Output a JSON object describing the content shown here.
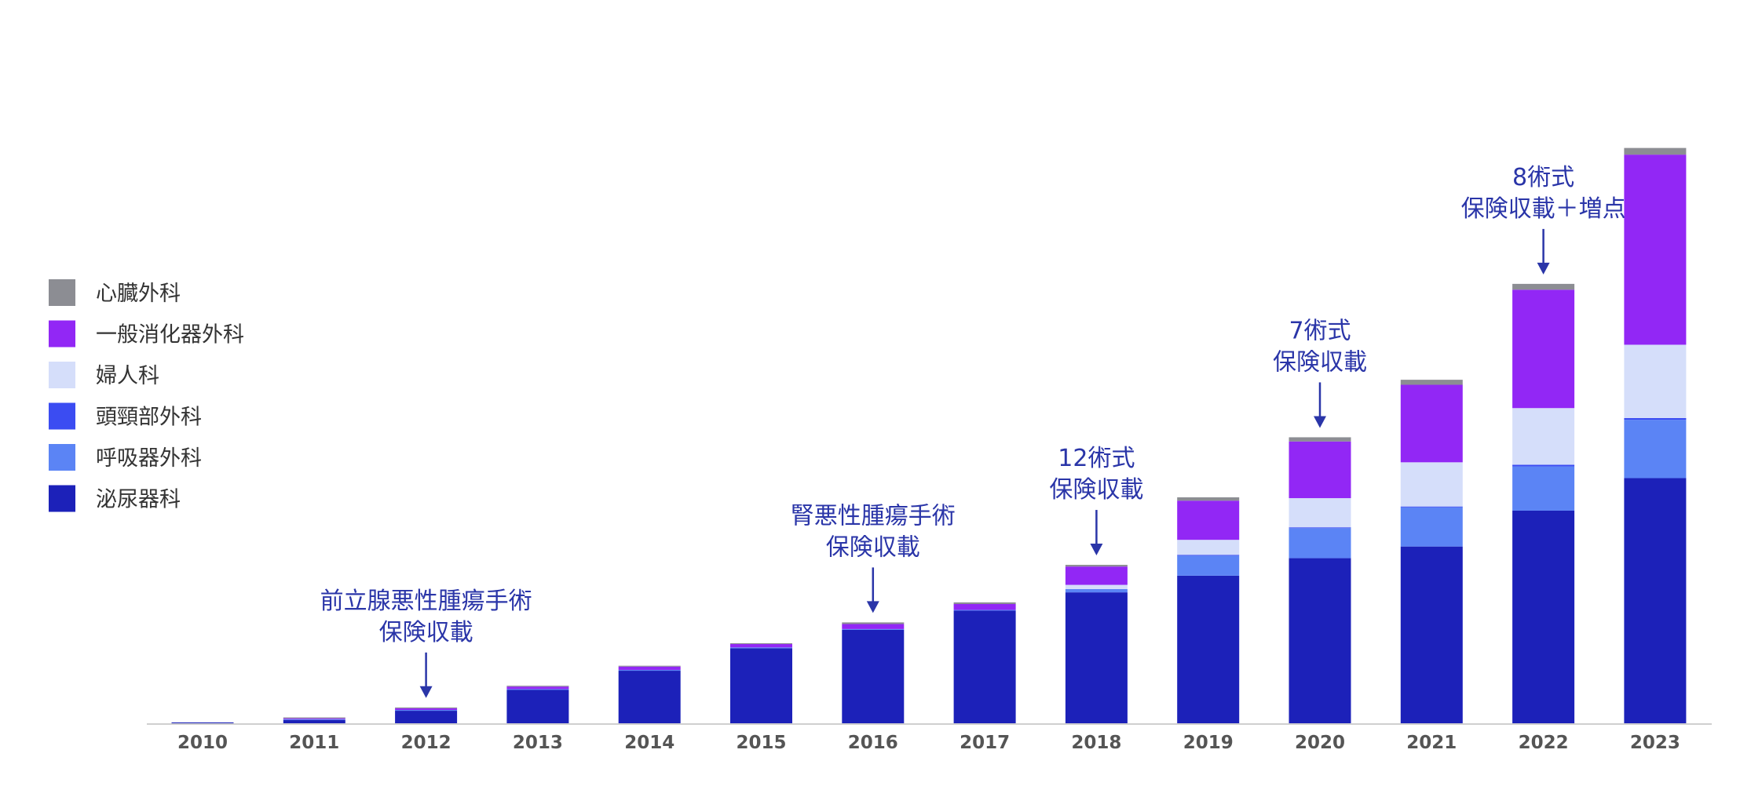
{
  "chart_data": {
    "type": "bar",
    "stacked": true,
    "categories": [
      "2010",
      "2011",
      "2012",
      "2013",
      "2014",
      "2015",
      "2016",
      "2017",
      "2018",
      "2019",
      "2020",
      "2021",
      "2022",
      "2023"
    ],
    "series": [
      {
        "name": "泌尿器科",
        "color": "#1c21b9",
        "values": [
          1,
          4,
          15,
          40,
          63,
          90,
          112,
          135,
          157,
          177,
          198,
          212,
          255,
          294
        ]
      },
      {
        "name": "呼吸器外科",
        "color": "#5b84f5",
        "values": [
          0,
          1,
          1,
          1,
          1,
          1,
          1,
          1,
          4,
          24,
          36,
          47,
          53,
          70
        ]
      },
      {
        "name": "頭頸部外科",
        "color": "#3b4cf2",
        "values": [
          0,
          0,
          0,
          0,
          0,
          0,
          0,
          0,
          0,
          1,
          1,
          1,
          2,
          2
        ]
      },
      {
        "name": "婦人科",
        "color": "#d5defa",
        "values": [
          0,
          0,
          0,
          0,
          0,
          0,
          0,
          0,
          5,
          18,
          35,
          53,
          68,
          88
        ]
      },
      {
        "name": "一般消化器外科",
        "color": "#9227f5",
        "values": [
          0,
          1,
          2,
          3,
          4,
          4,
          6,
          7,
          22,
          47,
          68,
          93,
          142,
          228
        ]
      },
      {
        "name": "心臓外科",
        "color": "#8c8d93",
        "values": [
          0,
          1,
          1,
          1,
          1,
          1,
          2,
          2,
          2,
          4,
          5,
          6,
          7,
          8
        ]
      }
    ],
    "legend_order": [
      "心臓外科",
      "一般消化器外科",
      "婦人科",
      "頭頸部外科",
      "呼吸器外科",
      "泌尿器科"
    ],
    "legend_position": "left",
    "ylim": [
      0,
      700
    ],
    "y_axis_visible": false,
    "grid": false,
    "annotations": [
      {
        "category": "2012",
        "lines": [
          "前立腺悪性腫瘍手術",
          "保険収載"
        ]
      },
      {
        "category": "2016",
        "lines": [
          "腎悪性腫瘍手術",
          "保険収載"
        ]
      },
      {
        "category": "2018",
        "lines": [
          "12術式",
          "保険収載"
        ]
      },
      {
        "category": "2020",
        "lines": [
          "7術式",
          "保険収載"
        ]
      },
      {
        "category": "2022",
        "lines": [
          "8術式",
          "保険収載＋増点"
        ]
      }
    ],
    "annotation_color": "#2a35a8"
  }
}
